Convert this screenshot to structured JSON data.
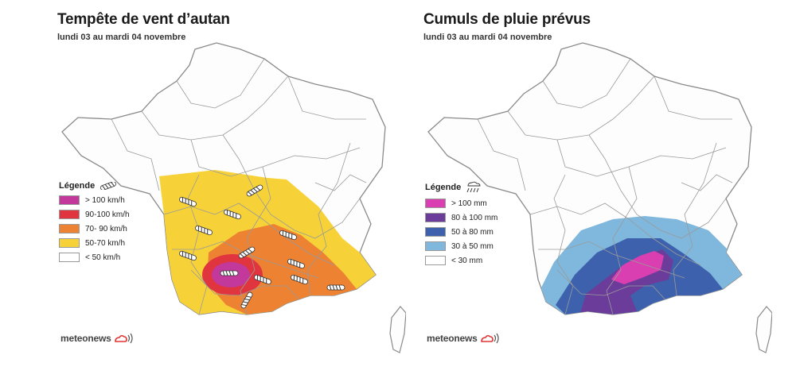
{
  "left_map": {
    "title": "Tempête de vent d’autan",
    "subtitle": "lundi 03 au mardi 04 novembre",
    "legend_title": "Légende",
    "legend_icon": "wind-icon",
    "legend": [
      {
        "label": "> 100 km/h",
        "color": "#c2399b"
      },
      {
        "label": "90-100 km/h",
        "color": "#e0353f"
      },
      {
        "label": "70- 90 km/h",
        "color": "#ee8233"
      },
      {
        "label": "50-70 km/h",
        "color": "#f6d238"
      },
      {
        "label": "< 50 km/h",
        "color": "#ffffff"
      }
    ],
    "brand": "meteonews"
  },
  "right_map": {
    "title": "Cumuls de pluie prévus",
    "subtitle": "lundi 03 au mardi 04 novembre",
    "legend_title": "Légende",
    "legend_icon": "rain-icon",
    "legend": [
      {
        "label": "> 100 mm",
        "color": "#d93fb0"
      },
      {
        "label": "80 à 100 mm",
        "color": "#6b3c9a"
      },
      {
        "label": "50 à 80 mm",
        "color": "#3e61ad"
      },
      {
        "label": "30 à 50 mm",
        "color": "#7fb8dc"
      },
      {
        "label": "< 30 mm",
        "color": "#ffffff"
      }
    ],
    "brand": "meteonews"
  }
}
